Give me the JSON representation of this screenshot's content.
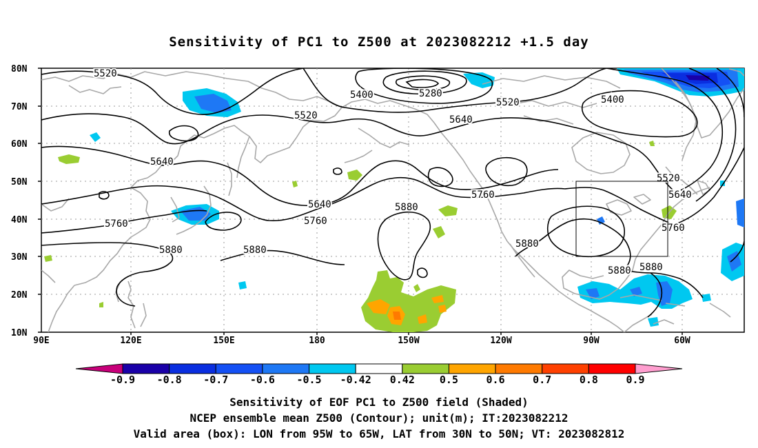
{
  "title": "Sensitivity of PC1 to Z500 at 2023082212 +1.5 day",
  "lat_labels": [
    "80N",
    "70N",
    "60N",
    "50N",
    "40N",
    "30N",
    "20N",
    "10N"
  ],
  "lon_labels": [
    "90E",
    "120E",
    "150E",
    "180",
    "150W",
    "120W",
    "90W",
    "60W"
  ],
  "contour_labels": {
    "c5520_a": "5520",
    "c5400_a": "5400",
    "c5280": "5280",
    "c5520_b": "5520",
    "c5520_c": "5520",
    "c5640_a": "5640",
    "c5400_b": "5400",
    "c5640_b": "5640",
    "c5640_c": "5640",
    "c5760_a": "5760",
    "c5880_a": "5880",
    "c5520_d": "5520",
    "c5640_d": "5640",
    "c5760_b": "5760",
    "c5760_c": "5760",
    "c5880_b": "5880",
    "c5880_c": "5880",
    "c5760_d": "5760",
    "c5880_d": "5880",
    "c5880_e": "5880"
  },
  "colorbar": {
    "labels": [
      "-0.9",
      "-0.8",
      "-0.7",
      "-0.6",
      "-0.5",
      "-0.42",
      "0.42",
      "0.5",
      "0.6",
      "0.7",
      "0.8",
      "0.9"
    ],
    "colors": [
      "#1a00a8",
      "#0a2ee0",
      "#1450f5",
      "#1e78f5",
      "#00c8f0",
      "#ffffff",
      "#9acd32",
      "#ffa500",
      "#ff7a00",
      "#ff4000",
      "#ff0000"
    ],
    "end_low": "#c8007a",
    "end_high": "#ff9ecf"
  },
  "captions": {
    "line1": "Sensitivity of EOF PC1 to Z500 field (Shaded)",
    "line2": "NCEP ensemble mean Z500 (Contour); unit(m); IT:2023082212",
    "line3": "Valid area (box): LON from 95W to 65W, LAT from 30N to 50N; VT: 2023082812"
  }
}
